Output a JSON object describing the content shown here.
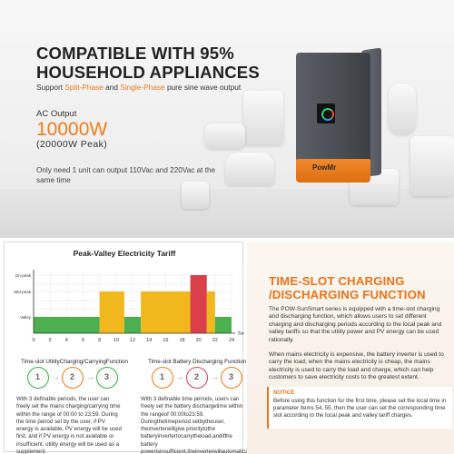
{
  "banner": {
    "headline_line1": "COMPATIBLE WITH 95%",
    "headline_line2": "HOUSEHOLD APPLIANCES",
    "support_prefix": "Support ",
    "support_split": "Split-Phase",
    "support_and": " and ",
    "support_single": "Single-Phase",
    "support_suffix": " pure sine wave output",
    "ac_label": "AC Output",
    "ac_value": "10000W",
    "ac_peak": "(20000W Peak)",
    "once_text": "Only need 1 unit can output 110Vac and 220Vac at the same time",
    "brand_logo": "PowMr",
    "accent_color": "#ef7d1a"
  },
  "chart": {
    "title": "Peak-Valley Electricity Tariff",
    "left_fn_title": "Time-slot UtilityCharging/CarryingFunction",
    "right_fn_title": "Time-slot Battery Discharging  Function",
    "left_clocks": [
      "1",
      "2",
      "3"
    ],
    "right_clocks": [
      "1",
      "2",
      "3"
    ],
    "left_text": "With 3 definable periods, the user can freely set the mains charging/carrying time within the range of 00:00 to 23:59. During the time period set by the user, if PV energy is available, PV energy will be used first, and if PV energy is not available or insufficient, utility energy will be used as a supplement.",
    "right_text": "With 3 definable time periods, users can freely set the battery dischargetime within the rangeof 00:00to23:59. Duringthetimeperiod setbytheuser, theinverterwillgive prioritytothe batteryinvertertocarrytheload,andifthe battery powerisinsufficient,theinverterwillautomatically switch to mains power to ensure stable"
  },
  "chart_data": {
    "type": "bar",
    "title": "Peak-Valley Electricity Tariff",
    "xlabel": "Time",
    "ylabel": "",
    "x_ticks": [
      0,
      2,
      4,
      6,
      8,
      10,
      12,
      14,
      16,
      18,
      20,
      22,
      24
    ],
    "y_levels": [
      "Valley",
      "Mid-peak",
      "On-peak"
    ],
    "segments": [
      {
        "start": 0,
        "end": 8,
        "level": "Valley",
        "color": "#4caf50"
      },
      {
        "start": 8,
        "end": 11,
        "level": "Mid-peak",
        "color": "#f0b81c"
      },
      {
        "start": 11,
        "end": 13,
        "level": "Valley",
        "color": "#4caf50"
      },
      {
        "start": 13,
        "end": 19,
        "level": "Mid-peak",
        "color": "#f0b81c"
      },
      {
        "start": 19,
        "end": 21,
        "level": "On-peak",
        "color": "#d9404a"
      },
      {
        "start": 21,
        "end": 22,
        "level": "Mid-peak",
        "color": "#f0b81c"
      },
      {
        "start": 22,
        "end": 24,
        "level": "Valley",
        "color": "#4caf50"
      }
    ],
    "grid": true
  },
  "info": {
    "title_line1": "TIME-SLOT CHARGING",
    "title_line2": "/DISCHARGING FUNCTION",
    "para1": "The POW-SunSmart series is equipped with a time-slot charging and discharging function, which allows users to set different charging and discharging periods according to the local peak and valley tariffs so that the utility power and PV energy can be used rationally.",
    "para2": "When mains electricity is expensive, the battery inverter is used to carry the load; when the mains electricity is cheap, the mains electricity is used to carry the load and charge, which can help customers to save electricity costs to the greatest extent.",
    "notice_title": "NOTICE",
    "notice_text": "Before using this function for the first time, please set the local time in parameter items 54, 55, then the user can set the corresponding time slot according to the local peak and valley tariff charges."
  }
}
